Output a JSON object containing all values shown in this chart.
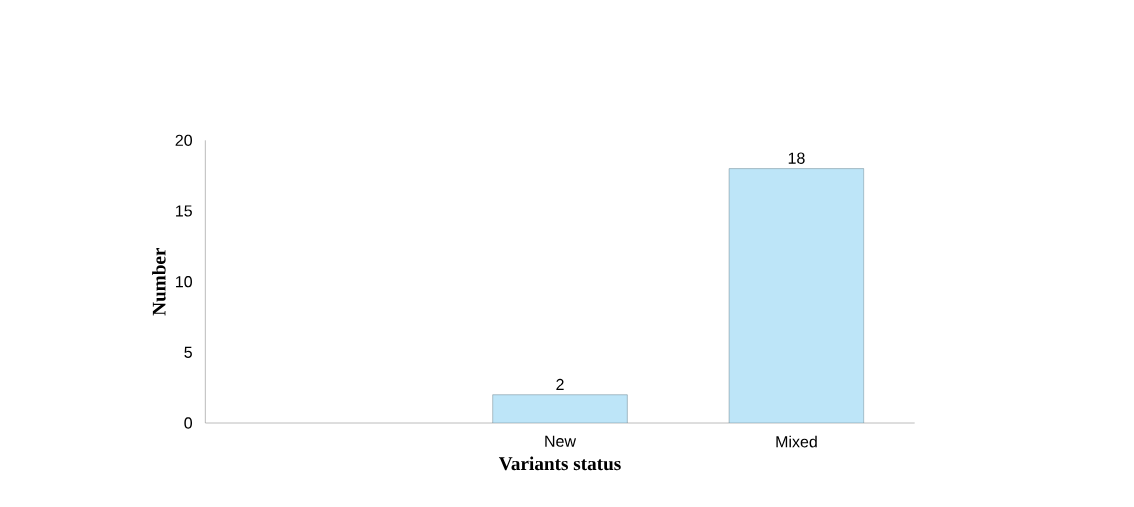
{
  "chart_data": {
    "type": "bar",
    "xlabel": "Variants status",
    "ylabel": "Number",
    "categories": [
      null,
      "New",
      "Mixed"
    ],
    "values": [
      null,
      2,
      18
    ],
    "color": "#bde5f8",
    "ylim": [
      0,
      20
    ],
    "yticks": [
      0,
      5,
      10,
      15,
      20
    ],
    "data_labels": true
  }
}
